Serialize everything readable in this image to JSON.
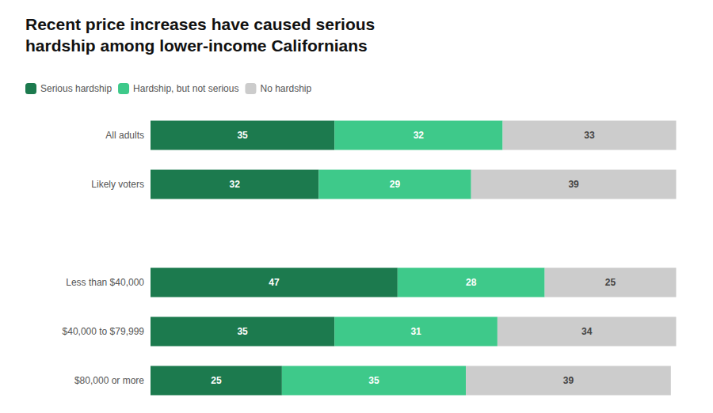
{
  "chart_data": {
    "type": "bar",
    "orientation": "horizontal",
    "stacked": true,
    "data_labels": true,
    "title": "Recent price increases have caused serious\nhardship among lower-income Californians",
    "categories": [
      "All adults",
      "Likely voters",
      null,
      "Less than $40,000",
      "$40,000 to $79,999",
      "$80,000 or more"
    ],
    "series": [
      {
        "name": "Serious hardship",
        "color": "#1c7a4e",
        "values": [
          35,
          32,
          null,
          47,
          35,
          25
        ]
      },
      {
        "name": "Hardship, but not serious",
        "color": "#3ec98a",
        "values": [
          32,
          29,
          null,
          28,
          31,
          35
        ]
      },
      {
        "name": "No hardship",
        "color": "#cccccc",
        "values": [
          33,
          39,
          null,
          25,
          34,
          39
        ]
      }
    ],
    "xlim": [
      0,
      104
    ],
    "tick_labels": "y",
    "grid": false,
    "legend": "upper left"
  }
}
